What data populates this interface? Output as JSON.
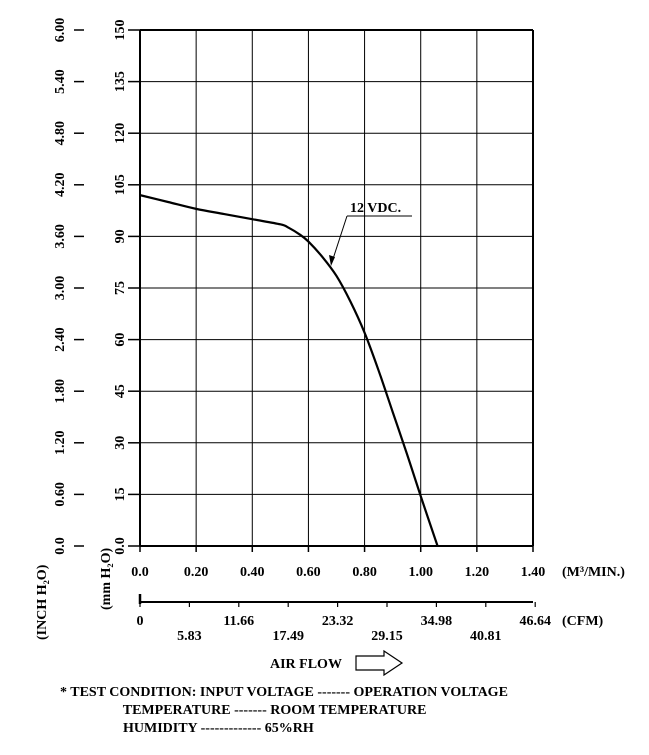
{
  "chart_data": {
    "type": "line",
    "title": "",
    "xlabel": "AIR FLOW",
    "x_unit_primary": "(M³/MIN.)",
    "x_unit_secondary": "(CFM)",
    "y_unit_primary": "(mm H₂O)",
    "y_unit_secondary": "(INCH H₂O)",
    "xlim": [
      0,
      1.4
    ],
    "ylim": [
      0,
      150
    ],
    "x_ticks": [
      "0.0",
      "0.20",
      "0.40",
      "0.60",
      "0.80",
      "1.00",
      "1.20",
      "1.40"
    ],
    "cfm_ticks": [
      "0",
      "5.83",
      "11.66",
      "17.49",
      "23.32",
      "29.15",
      "34.98",
      "40.81",
      "46.64"
    ],
    "y_ticks_mm": [
      "0.0",
      "15",
      "30",
      "45",
      "60",
      "75",
      "90",
      "105",
      "120",
      "135",
      "150"
    ],
    "y_ticks_inch": [
      "0.0",
      "0.60",
      "1.20",
      "1.80",
      "2.40",
      "3.00",
      "3.60",
      "4.20",
      "4.80",
      "5.40",
      "6.00"
    ],
    "grid": true,
    "series": [
      {
        "name": "12 VDC.",
        "x": [
          0.0,
          0.1,
          0.2,
          0.3,
          0.4,
          0.5,
          0.53,
          0.57,
          0.6,
          0.65,
          0.7,
          0.75,
          0.8,
          0.85,
          0.9,
          0.95,
          1.0,
          1.06
        ],
        "y": [
          102,
          100,
          98,
          96.5,
          95,
          93.5,
          92.5,
          90.5,
          88.5,
          84,
          78.5,
          71,
          62,
          51,
          39,
          27,
          14.5,
          0
        ]
      }
    ]
  },
  "test_condition": {
    "line1": "* TEST CONDITION: INPUT VOLTAGE ------- OPERATION VOLTAGE",
    "line2": "                  TEMPERATURE ------- ROOM TEMPERATURE",
    "line3": "                  HUMIDITY ------------- 65%RH"
  }
}
